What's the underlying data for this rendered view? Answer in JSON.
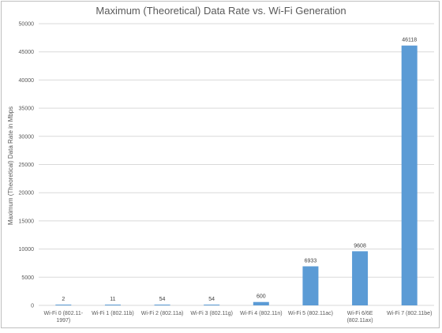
{
  "chart_data": {
    "type": "bar",
    "title": "Maximum (Theoretical) Data Rate vs. Wi-Fi Generation",
    "xlabel": "",
    "ylabel": "Maximum (Theoretical) Data Rate in Mbps",
    "ylim": [
      0,
      50000
    ],
    "yticks": [
      0,
      5000,
      10000,
      15000,
      20000,
      25000,
      30000,
      35000,
      40000,
      45000,
      50000
    ],
    "categories": [
      [
        "Wi-Fi 0 (802.11-",
        "1997)"
      ],
      [
        "Wi-Fi 1 (802.11b)"
      ],
      [
        "Wi-Fi 2 (802.11a)"
      ],
      [
        "Wi-Fi 3 (802.11g)"
      ],
      [
        "Wi-Fi 4 (802.11n)"
      ],
      [
        "Wi-Fi 5 (802.11ac)"
      ],
      [
        "Wi-Fi 6/6E",
        "(802.11ax)"
      ],
      [
        "Wi-Fi 7 (802.11be)"
      ]
    ],
    "values": [
      2,
      11,
      54,
      54,
      600,
      6933,
      9608,
      46118
    ],
    "bar_color": "#5b9bd5",
    "grid": true,
    "legend": "none"
  }
}
